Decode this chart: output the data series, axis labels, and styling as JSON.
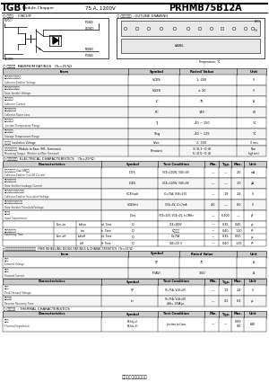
{
  "bg": "#ffffff",
  "footer": "日本インター株式会社"
}
